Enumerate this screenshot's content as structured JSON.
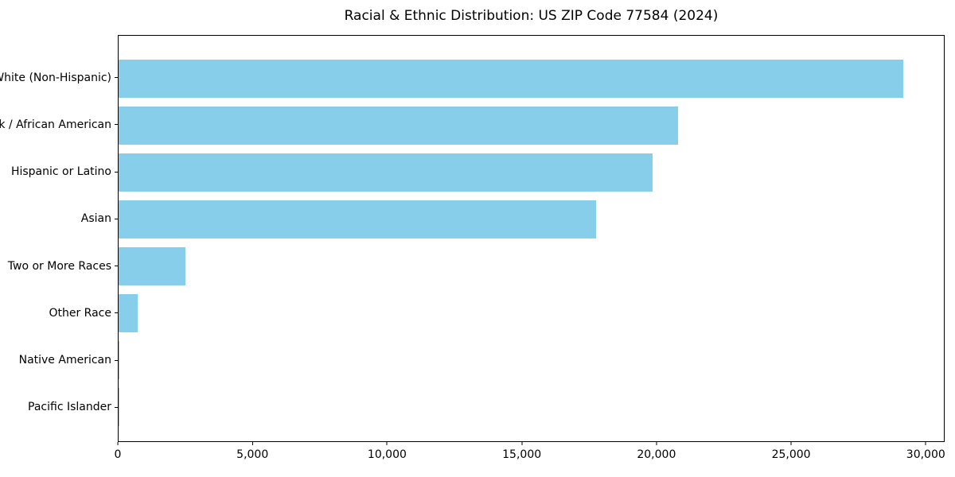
{
  "chart_data": {
    "type": "bar",
    "orientation": "horizontal",
    "title": "Racial & Ethnic Distribution: US ZIP Code 77584 (2024)",
    "xlabel": "",
    "ylabel": "",
    "categories": [
      "White (Non-Hispanic)",
      "Black / African American",
      "Hispanic or Latino",
      "Asian",
      "Two or More Races",
      "Other Race",
      "Native American",
      "Pacific Islander"
    ],
    "values": [
      29200,
      20800,
      19850,
      17750,
      2500,
      700,
      30,
      10
    ],
    "xlim": [
      0,
      30700
    ],
    "xticks": [
      0,
      5000,
      10000,
      15000,
      20000,
      25000,
      30000
    ],
    "xtick_labels": [
      "0",
      "5,000",
      "10,000",
      "15,000",
      "20,000",
      "25,000",
      "30,000"
    ],
    "bar_color": "#87CEEB",
    "grid": false,
    "legend": "none",
    "background_color": "#ffffff",
    "axis_color": "#000000"
  }
}
